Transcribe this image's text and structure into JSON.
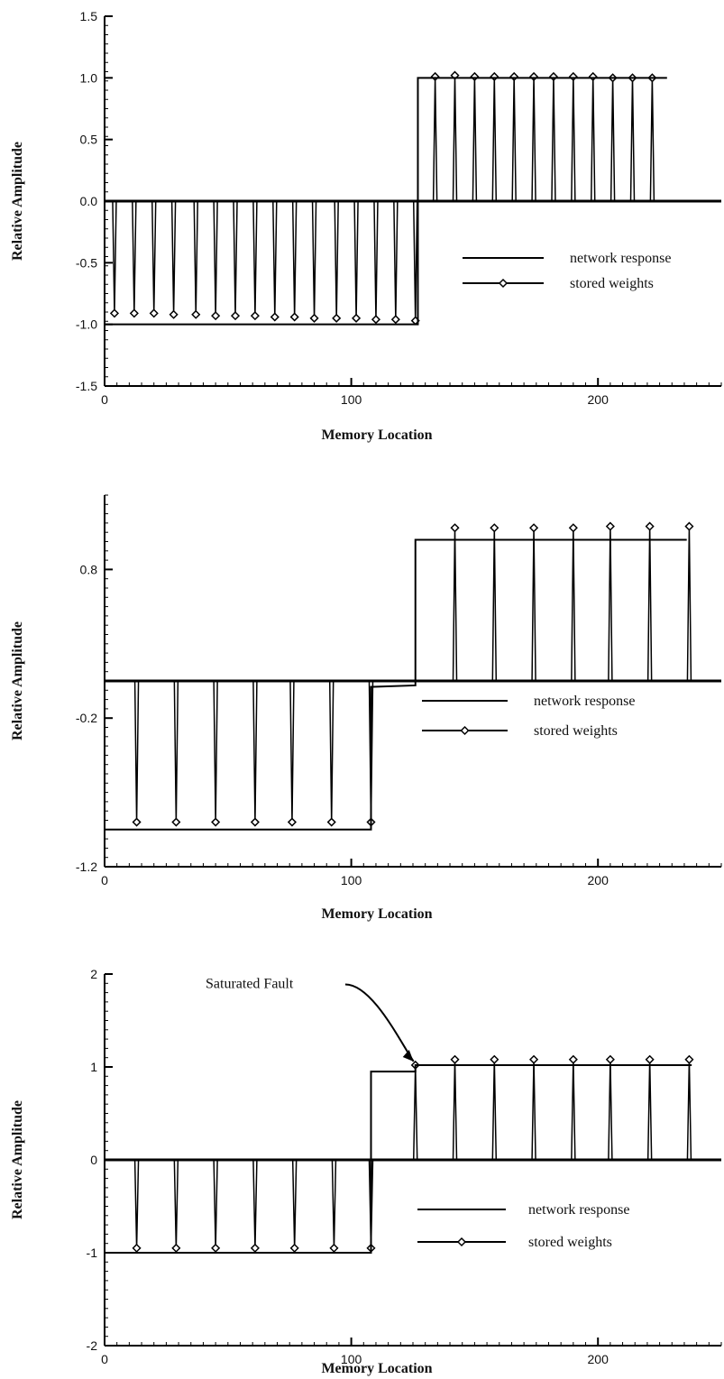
{
  "chart_data": [
    {
      "type": "line",
      "xlabel": "Memory Location",
      "ylabel": "Relative Amplitude",
      "xlim": [
        0,
        250
      ],
      "ylim": [
        -1.5,
        1.5
      ],
      "x_ticks": [
        0,
        100,
        200
      ],
      "y_ticks": [
        -1.5,
        -1.0,
        -0.5,
        0.0,
        0.5,
        1.0,
        1.5
      ],
      "y_tick_labels": [
        "-1.5",
        "-1.0",
        "-0.5",
        "0.0",
        "0.5",
        "1.0",
        "1.5"
      ],
      "legend": {
        "placement": "lower-right",
        "entries": [
          "network response",
          "stored weights"
        ]
      },
      "series": [
        {
          "name": "network response",
          "style": "solid",
          "x": [
            0,
            127,
            127,
            228
          ],
          "y": [
            -1.0,
            -1.0,
            1.0,
            1.0
          ]
        },
        {
          "name": "stored weights",
          "style": "diamond-markers",
          "baseline": 0.0,
          "baseline_range": [
            0,
            250
          ],
          "spikes": {
            "x": [
              4,
              12,
              20,
              28,
              37,
              45,
              53,
              61,
              69,
              77,
              85,
              94,
              102,
              110,
              118,
              126,
              134,
              142,
              150,
              158,
              166,
              174,
              182,
              190,
              198,
              206,
              214,
              222
            ],
            "y": [
              -0.91,
              -0.91,
              -0.91,
              -0.92,
              -0.92,
              -0.93,
              -0.93,
              -0.93,
              -0.94,
              -0.94,
              -0.95,
              -0.95,
              -0.95,
              -0.96,
              -0.96,
              -0.97,
              1.01,
              1.02,
              1.01,
              1.01,
              1.01,
              1.01,
              1.01,
              1.01,
              1.01,
              1.0,
              1.0,
              1.0
            ]
          }
        }
      ]
    },
    {
      "type": "line",
      "xlabel": "Memory Location",
      "ylabel": "Relative Amplitude",
      "xlim": [
        0,
        250
      ],
      "ylim": [
        -1.2,
        1.3
      ],
      "x_ticks": [
        0,
        100,
        200
      ],
      "y_ticks": [
        -1.2,
        -0.2,
        0.8
      ],
      "y_tick_labels": [
        "-1.2",
        "-0.2",
        "0.8"
      ],
      "legend": {
        "placement": "lower-right",
        "entries": [
          "network response",
          "stored weights"
        ]
      },
      "series": [
        {
          "name": "network response",
          "style": "solid",
          "x": [
            0,
            108,
            108,
            126,
            126,
            236
          ],
          "y": [
            -0.95,
            -0.95,
            0.01,
            0.02,
            1.0,
            1.0
          ]
        },
        {
          "name": "stored weights",
          "style": "diamond-markers",
          "baseline": 0.05,
          "baseline_range": [
            0,
            250
          ],
          "spikes": {
            "x": [
              13,
              29,
              45,
              61,
              76,
              92,
              108,
              142,
              158,
              174,
              190,
              205,
              221,
              237
            ],
            "y": [
              -0.9,
              -0.9,
              -0.9,
              -0.9,
              -0.9,
              -0.9,
              -0.9,
              1.08,
              1.08,
              1.08,
              1.08,
              1.09,
              1.09,
              1.09
            ]
          }
        }
      ]
    },
    {
      "type": "line",
      "xlabel": "Memory Location",
      "ylabel": "Relative Amplitude",
      "xlim": [
        0,
        250
      ],
      "ylim": [
        -2,
        2
      ],
      "x_ticks": [
        0,
        100,
        200
      ],
      "y_ticks": [
        -2,
        -1,
        0,
        1,
        2
      ],
      "y_tick_labels": [
        "-2",
        "-1",
        "0",
        "1",
        "2"
      ],
      "legend": {
        "placement": "lower-right",
        "entries": [
          "network response",
          "stored weights"
        ]
      },
      "annotations": [
        {
          "text": "Saturated Fault",
          "target_x": 126,
          "target_y": 1.02
        }
      ],
      "series": [
        {
          "name": "network response",
          "style": "solid",
          "x": [
            0,
            108,
            108,
            126,
            126,
            238
          ],
          "y": [
            -1.0,
            -1.0,
            0.95,
            0.95,
            1.02,
            1.02
          ]
        },
        {
          "name": "stored weights",
          "style": "diamond-markers",
          "baseline": 0.0,
          "baseline_range": [
            0,
            250
          ],
          "spikes": {
            "x": [
              13,
              29,
              45,
              61,
              77,
              93,
              108,
              126,
              142,
              158,
              174,
              190,
              205,
              221,
              237
            ],
            "y": [
              -0.95,
              -0.95,
              -0.95,
              -0.95,
              -0.95,
              -0.95,
              -0.95,
              1.02,
              1.08,
              1.08,
              1.08,
              1.08,
              1.08,
              1.08,
              1.08
            ]
          }
        }
      ]
    }
  ]
}
